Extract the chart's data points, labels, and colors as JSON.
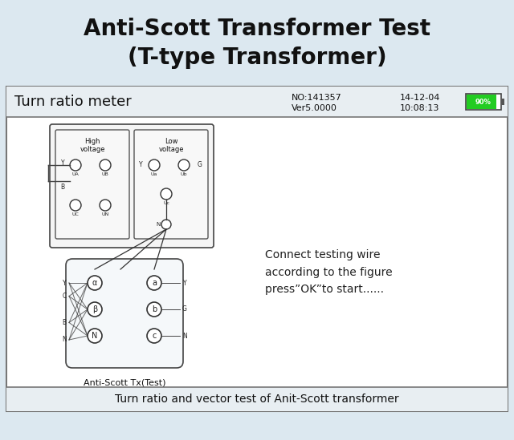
{
  "title_line1": "Anti-Scott Transformer Test",
  "title_line2": "(T-type Transformer)",
  "bg_color": "#dce8f0",
  "meter_bg": "#ffffff",
  "header_bg": "#e8eef2",
  "header_text": "Turn ratio meter",
  "no_text": "NO:141357",
  "ver_text": "Ver5.0000",
  "date_text": "14-12-04",
  "time_text": "10:08:13",
  "battery_pct": "90%",
  "footer_text": "Turn ratio and vector test of Anit-Scott transformer",
  "connect_text": "Connect testing wire\naccording to the figure\npress”OK”to start......",
  "antiscott_label": "Anti-Scott Tx(Test)",
  "high_voltage_label": "High\nvoltage",
  "low_voltage_label": "Low\nvoltage"
}
